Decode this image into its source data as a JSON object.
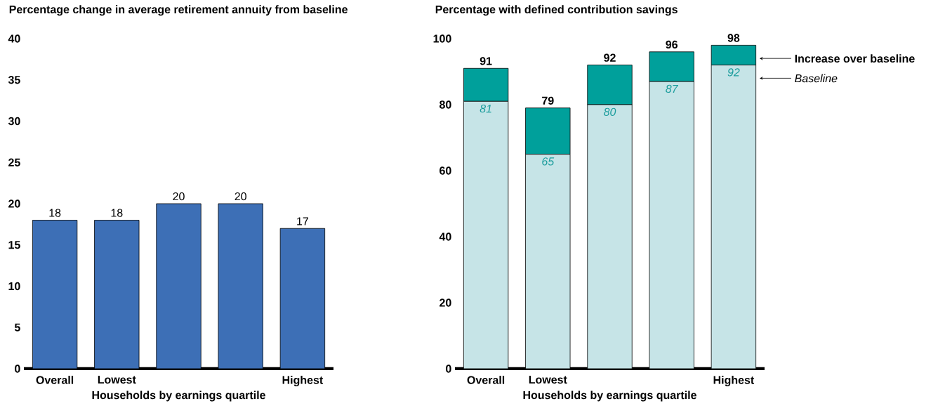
{
  "chart_data": [
    {
      "type": "bar",
      "title": "Percentage change in average retirement annuity from baseline",
      "xlabel": "Households by earnings quartile",
      "categories": [
        "Overall",
        "Lowest",
        null,
        null,
        "Highest"
      ],
      "values": [
        18,
        18,
        20,
        20,
        17
      ],
      "color": "#3d6fb6",
      "ylim": [
        0,
        40
      ],
      "yticks": [
        0,
        5,
        10,
        15,
        20,
        25,
        30,
        35,
        40
      ],
      "data_labels": true
    },
    {
      "type": "bar",
      "stacked": true,
      "title": "Percentage with defined contribution savings",
      "xlabel": "Households by earnings quartile",
      "categories": [
        "Overall",
        "Lowest",
        null,
        null,
        "Highest"
      ],
      "series": [
        {
          "name": "Baseline",
          "color": "#c6e4e7",
          "values": [
            81,
            65,
            80,
            87,
            92
          ],
          "value_labels": [
            "81",
            "65",
            "80",
            "87",
            "92"
          ]
        },
        {
          "name": "Increase over baseline",
          "color": "#00a09b",
          "values": [
            10,
            14,
            12,
            9,
            6
          ]
        }
      ],
      "totals": [
        "91",
        "79",
        "92",
        "96",
        "98"
      ],
      "ylim": [
        0,
        100
      ],
      "yticks": [
        0,
        20,
        40,
        60,
        80,
        100
      ],
      "legend": "right"
    }
  ]
}
